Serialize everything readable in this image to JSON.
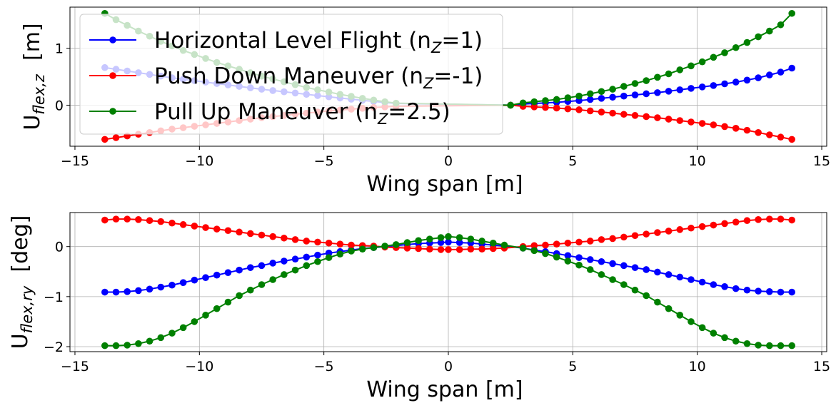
{
  "chart_data": [
    {
      "type": "line",
      "xlabel": "Wing span [m]",
      "ylabel": {
        "main": "U",
        "sub": "flex,z",
        "unit": "[m]"
      },
      "xlim": [
        -15.2,
        15.2
      ],
      "ylim": [
        -0.72,
        1.72
      ],
      "xticks": [
        -15,
        -10,
        -5,
        0,
        5,
        10,
        15
      ],
      "xtick_labels": [
        "−15",
        "−10",
        "−5",
        "0",
        "5",
        "10",
        "15"
      ],
      "yticks": [
        -1,
        0,
        1
      ],
      "ytick_labels": [
        "−1",
        "0",
        "1"
      ],
      "visible_yticks": [
        0,
        1
      ],
      "grid": true,
      "legend_position": "upper-left",
      "x": [
        -13.8,
        -13.35,
        -12.9,
        -12.45,
        -12.0,
        -11.55,
        -11.1,
        -10.65,
        -10.2,
        -9.75,
        -9.3,
        -8.85,
        -8.4,
        -7.95,
        -7.5,
        -7.05,
        -6.6,
        -6.15,
        -5.7,
        -5.25,
        -4.8,
        -4.35,
        -3.9,
        -3.45,
        -3.0,
        -2.55,
        -2.1,
        2.5,
        3.0,
        3.45,
        3.9,
        4.35,
        4.8,
        5.25,
        5.7,
        6.15,
        6.6,
        7.05,
        7.5,
        7.95,
        8.4,
        8.85,
        9.3,
        9.75,
        10.2,
        10.65,
        11.1,
        11.55,
        12.0,
        12.45,
        12.9,
        13.35,
        13.8
      ],
      "series": [
        {
          "name": "Horizontal Level Flight (n",
          "name_sub": "Z",
          "name_tail": "=1)",
          "color": "#0000ff",
          "values": [
            0.66,
            0.63,
            0.6,
            0.57,
            0.54,
            0.51,
            0.48,
            0.455,
            0.43,
            0.405,
            0.38,
            0.355,
            0.33,
            0.305,
            0.28,
            0.257,
            0.235,
            0.213,
            0.19,
            0.168,
            0.147,
            0.126,
            0.105,
            0.085,
            0.066,
            0.048,
            0.03,
            0.0,
            0.02,
            0.03,
            0.04,
            0.05,
            0.065,
            0.08,
            0.1,
            0.12,
            0.14,
            0.16,
            0.18,
            0.2,
            0.22,
            0.245,
            0.27,
            0.295,
            0.32,
            0.345,
            0.375,
            0.405,
            0.44,
            0.48,
            0.53,
            0.58,
            0.65
          ]
        },
        {
          "name": "Push Down Maneuver (n",
          "name_sub": "Z",
          "name_tail": "=-1)",
          "color": "#ff0000",
          "values": [
            -0.6,
            -0.57,
            -0.54,
            -0.51,
            -0.48,
            -0.45,
            -0.42,
            -0.395,
            -0.37,
            -0.345,
            -0.32,
            -0.295,
            -0.27,
            -0.245,
            -0.22,
            -0.2,
            -0.18,
            -0.16,
            -0.14,
            -0.12,
            -0.1,
            -0.085,
            -0.07,
            -0.055,
            -0.04,
            -0.03,
            -0.02,
            0.0,
            -0.02,
            -0.03,
            -0.04,
            -0.05,
            -0.065,
            -0.08,
            -0.1,
            -0.12,
            -0.14,
            -0.16,
            -0.18,
            -0.2,
            -0.22,
            -0.245,
            -0.27,
            -0.295,
            -0.32,
            -0.345,
            -0.375,
            -0.405,
            -0.44,
            -0.48,
            -0.52,
            -0.56,
            -0.6
          ]
        },
        {
          "name": "Pull Up Maneuver (n",
          "name_sub": "Z",
          "name_tail": "=2.5)",
          "color": "#008000",
          "values": [
            1.61,
            1.5,
            1.4,
            1.3,
            1.21,
            1.12,
            1.04,
            0.96,
            0.89,
            0.82,
            0.75,
            0.69,
            0.63,
            0.57,
            0.51,
            0.46,
            0.41,
            0.36,
            0.31,
            0.27,
            0.23,
            0.19,
            0.155,
            0.12,
            0.09,
            0.06,
            0.035,
            0.0,
            0.04,
            0.06,
            0.08,
            0.1,
            0.13,
            0.16,
            0.2,
            0.24,
            0.28,
            0.33,
            0.38,
            0.43,
            0.49,
            0.55,
            0.62,
            0.69,
            0.76,
            0.84,
            0.92,
            1.01,
            1.1,
            1.2,
            1.3,
            1.41,
            1.61
          ]
        }
      ]
    },
    {
      "type": "line",
      "xlabel": "Wing span [m]",
      "ylabel": {
        "main": "U",
        "sub": "flex,ry",
        "unit": "[deg]"
      },
      "xlim": [
        -15.2,
        15.2
      ],
      "ylim": [
        -2.1,
        0.68
      ],
      "xticks": [
        -15,
        -10,
        -5,
        0,
        5,
        10,
        15
      ],
      "xtick_labels": [
        "−15",
        "−10",
        "−5",
        "0",
        "5",
        "10",
        "15"
      ],
      "yticks": [
        -2,
        -1,
        0
      ],
      "ytick_labels": [
        "−2",
        "−1",
        "0"
      ],
      "grid": true,
      "x": [
        -13.8,
        -13.35,
        -12.9,
        -12.45,
        -12.0,
        -11.55,
        -11.1,
        -10.65,
        -10.2,
        -9.75,
        -9.3,
        -8.85,
        -8.4,
        -7.95,
        -7.5,
        -7.05,
        -6.6,
        -6.15,
        -5.7,
        -5.25,
        -4.8,
        -4.35,
        -3.9,
        -3.45,
        -3.0,
        -2.55,
        -2.1,
        -1.65,
        -1.2,
        -0.75,
        -0.3,
        0.0,
        0.45,
        0.9,
        1.35,
        1.8,
        2.25,
        3.0,
        3.45,
        3.9,
        4.35,
        4.8,
        5.25,
        5.7,
        6.15,
        6.6,
        7.05,
        7.5,
        7.95,
        8.4,
        8.85,
        9.3,
        9.75,
        10.2,
        10.65,
        11.1,
        11.55,
        12.0,
        12.45,
        12.9,
        13.35,
        13.8
      ],
      "series": [
        {
          "name": "Horizontal Level Flight",
          "color": "#0000ff",
          "values": [
            -0.91,
            -0.91,
            -0.9,
            -0.88,
            -0.85,
            -0.81,
            -0.77,
            -0.72,
            -0.67,
            -0.62,
            -0.57,
            -0.52,
            -0.47,
            -0.42,
            -0.38,
            -0.33,
            -0.29,
            -0.25,
            -0.21,
            -0.17,
            -0.13,
            -0.1,
            -0.07,
            -0.04,
            -0.02,
            0.0,
            0.02,
            0.04,
            0.06,
            0.07,
            0.08,
            0.09,
            0.08,
            0.07,
            0.05,
            0.03,
            0.01,
            -0.03,
            -0.07,
            -0.1,
            -0.14,
            -0.18,
            -0.22,
            -0.26,
            -0.3,
            -0.34,
            -0.38,
            -0.42,
            -0.46,
            -0.51,
            -0.56,
            -0.61,
            -0.66,
            -0.71,
            -0.76,
            -0.8,
            -0.84,
            -0.87,
            -0.89,
            -0.9,
            -0.91,
            -0.91
          ]
        },
        {
          "name": "Push Down Maneuver",
          "color": "#ff0000",
          "values": [
            0.53,
            0.55,
            0.55,
            0.54,
            0.52,
            0.5,
            0.47,
            0.44,
            0.41,
            0.38,
            0.35,
            0.32,
            0.29,
            0.26,
            0.23,
            0.2,
            0.17,
            0.14,
            0.11,
            0.09,
            0.07,
            0.05,
            0.03,
            0.02,
            0.01,
            -0.01,
            -0.02,
            -0.03,
            -0.04,
            -0.05,
            -0.06,
            -0.06,
            -0.06,
            -0.05,
            -0.05,
            -0.04,
            -0.03,
            0.0,
            0.02,
            0.03,
            0.05,
            0.07,
            0.09,
            0.11,
            0.14,
            0.16,
            0.19,
            0.22,
            0.25,
            0.28,
            0.31,
            0.34,
            0.37,
            0.4,
            0.43,
            0.46,
            0.49,
            0.52,
            0.54,
            0.55,
            0.55,
            0.53
          ]
        },
        {
          "name": "Pull Up Maneuver",
          "color": "#008000",
          "values": [
            -1.98,
            -1.98,
            -1.97,
            -1.94,
            -1.89,
            -1.82,
            -1.73,
            -1.62,
            -1.5,
            -1.37,
            -1.24,
            -1.11,
            -0.98,
            -0.87,
            -0.76,
            -0.66,
            -0.56,
            -0.47,
            -0.38,
            -0.3,
            -0.22,
            -0.15,
            -0.09,
            -0.05,
            -0.02,
            0.01,
            0.04,
            0.08,
            0.12,
            0.15,
            0.18,
            0.2,
            0.18,
            0.15,
            0.11,
            0.07,
            0.03,
            -0.03,
            -0.08,
            -0.14,
            -0.21,
            -0.29,
            -0.37,
            -0.46,
            -0.56,
            -0.66,
            -0.76,
            -0.87,
            -0.98,
            -1.11,
            -1.24,
            -1.37,
            -1.5,
            -1.62,
            -1.73,
            -1.82,
            -1.89,
            -1.94,
            -1.97,
            -1.98,
            -1.98,
            -1.98
          ]
        }
      ]
    }
  ]
}
